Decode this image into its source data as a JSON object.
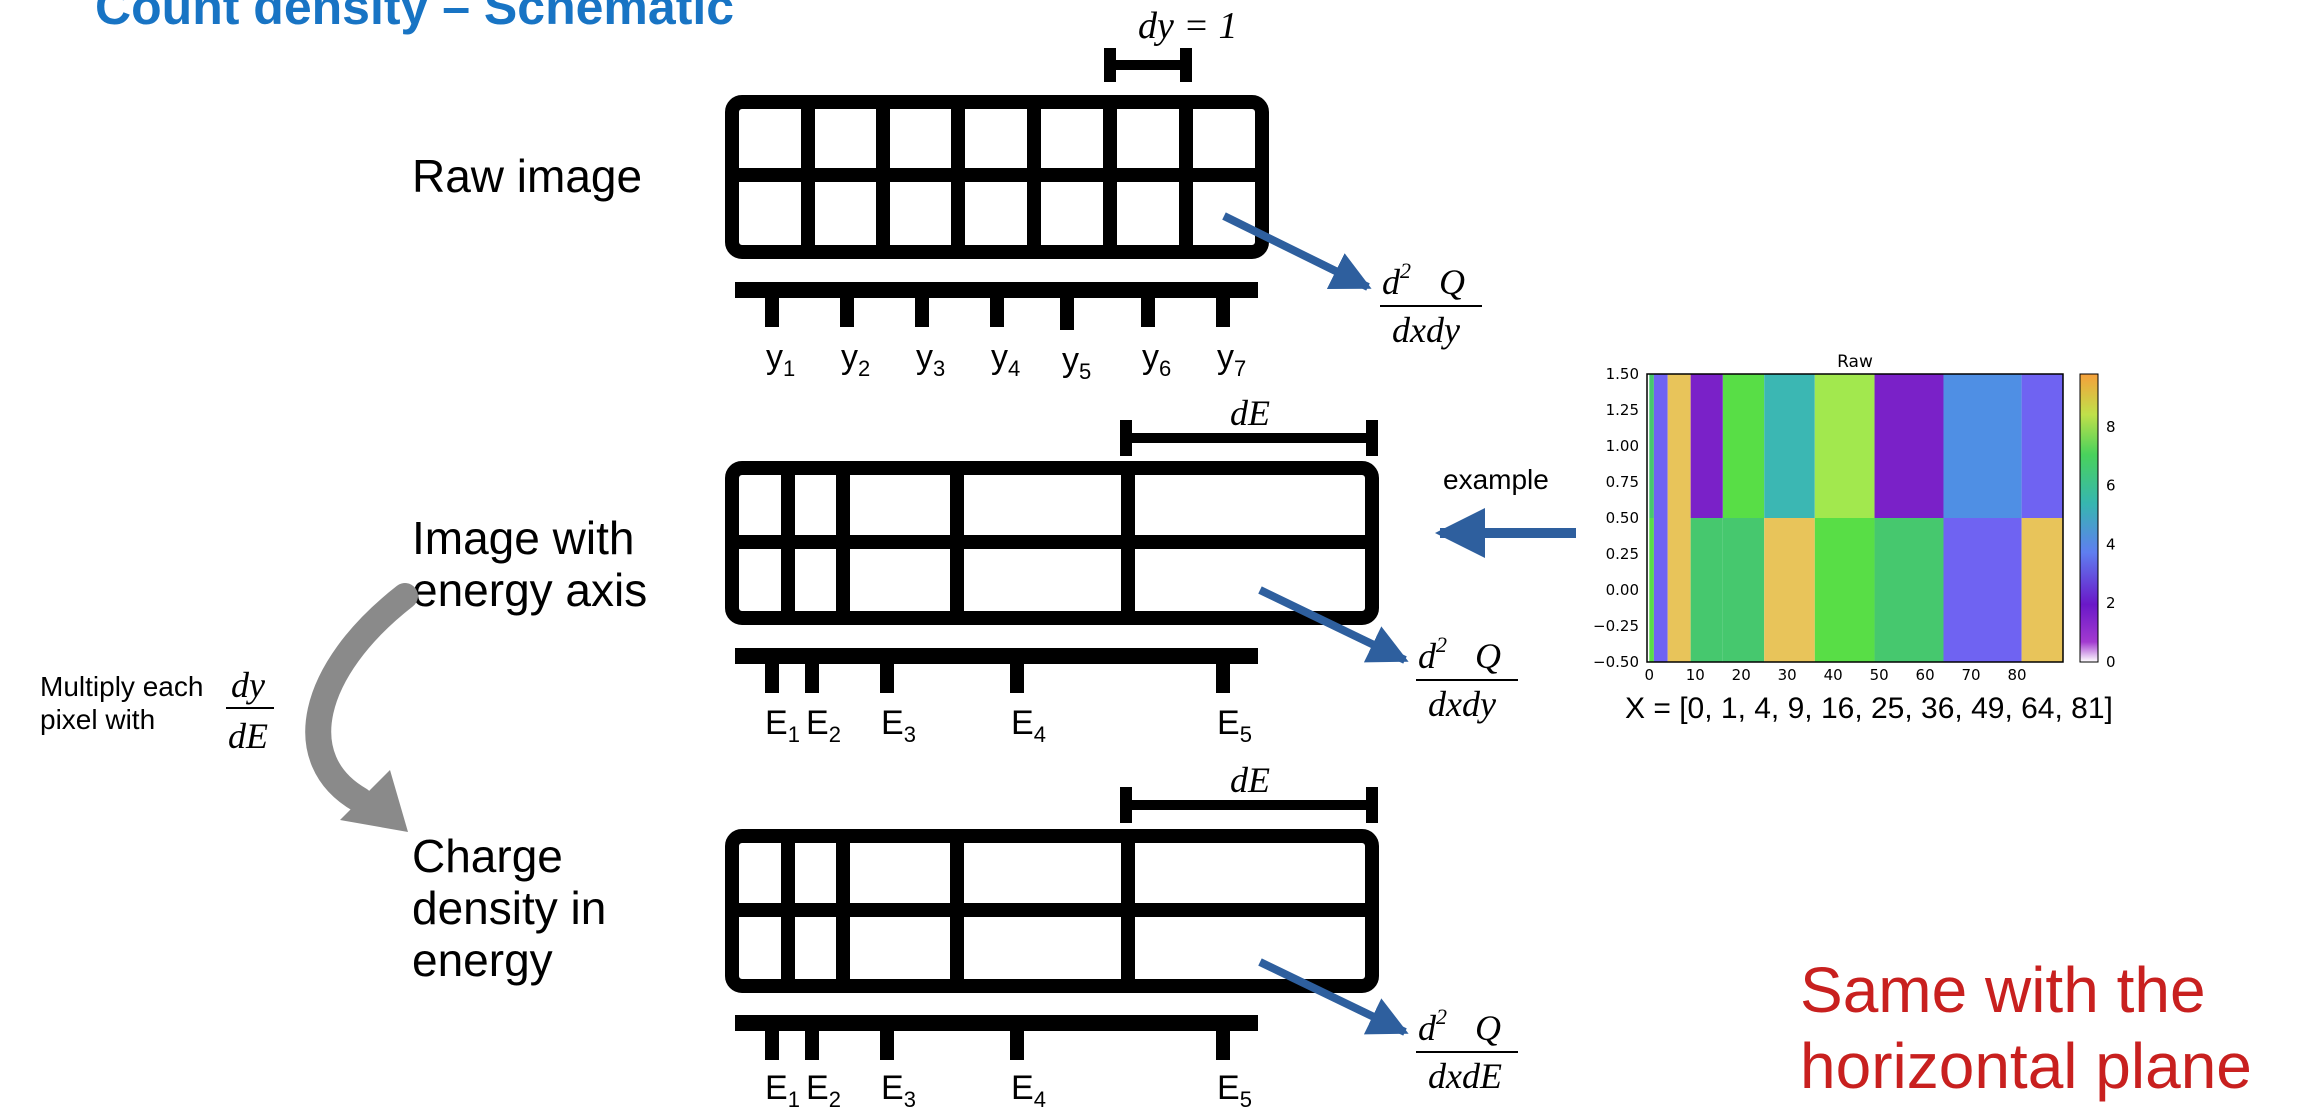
{
  "slide": {
    "title": "Count density – Schematic",
    "label_raw": "Raw image",
    "label_energy_line1": "Image with",
    "label_energy_line2": "energy axis",
    "label_charge_line1": "Charge",
    "label_charge_line2": "density in",
    "label_charge_line3": "energy",
    "multiply_line1": "Multiply each",
    "multiply_line2": "pixel with",
    "example": "example",
    "red_line1": "Same with the",
    "red_line2": "horizontal plane",
    "x_caption": "X = [0, 1, 4, 9, 16, 25, 36, 49, 64, 81]"
  },
  "math": {
    "dy_eq": "dy = 1",
    "dE": "dE",
    "d2Q_num": "d",
    "sup2": "2",
    "Q": "Q",
    "dxdy": "dxdy",
    "dxdE": "dxdE",
    "frac_num": "dy",
    "frac_den": "dE"
  },
  "y_ticks": [
    "y1",
    "y2",
    "y3",
    "y4",
    "y5",
    "y6",
    "y7"
  ],
  "e_ticks": [
    "E1",
    "E2",
    "E3",
    "E4",
    "E5"
  ],
  "inset": {
    "title": "Raw",
    "y_ticks": [
      "1.50",
      "1.25",
      "1.00",
      "0.75",
      "0.50",
      "0.25",
      "0.00",
      "−0.25",
      "−0.50"
    ],
    "x_ticks": [
      "0",
      "10",
      "20",
      "30",
      "40",
      "50",
      "60",
      "70",
      "80"
    ],
    "cbar_ticks": [
      "8",
      "6",
      "4",
      "2",
      "0"
    ],
    "x_edges": [
      0,
      1,
      4,
      9,
      16,
      25,
      36,
      49,
      64,
      81
    ],
    "top_colors": [
      "#46c86e",
      "#6f63f2",
      "#e8c45a",
      "#7a21c8",
      "#58de46",
      "#3bb7b3",
      "#a2e84e",
      "#7a21c8",
      "#4f8fe4",
      "#6f63f2"
    ],
    "bottom_colors": [
      "#58de46",
      "#6f63f2",
      "#e8c45a",
      "#46c86e",
      "#46c86e",
      "#e8c45a",
      "#58de46",
      "#46c86e",
      "#6f63f2",
      "#e8c45a"
    ],
    "colors": {
      "arrow": "#2e5f9e",
      "title": "#1874c4",
      "red": "#c8201f"
    }
  }
}
